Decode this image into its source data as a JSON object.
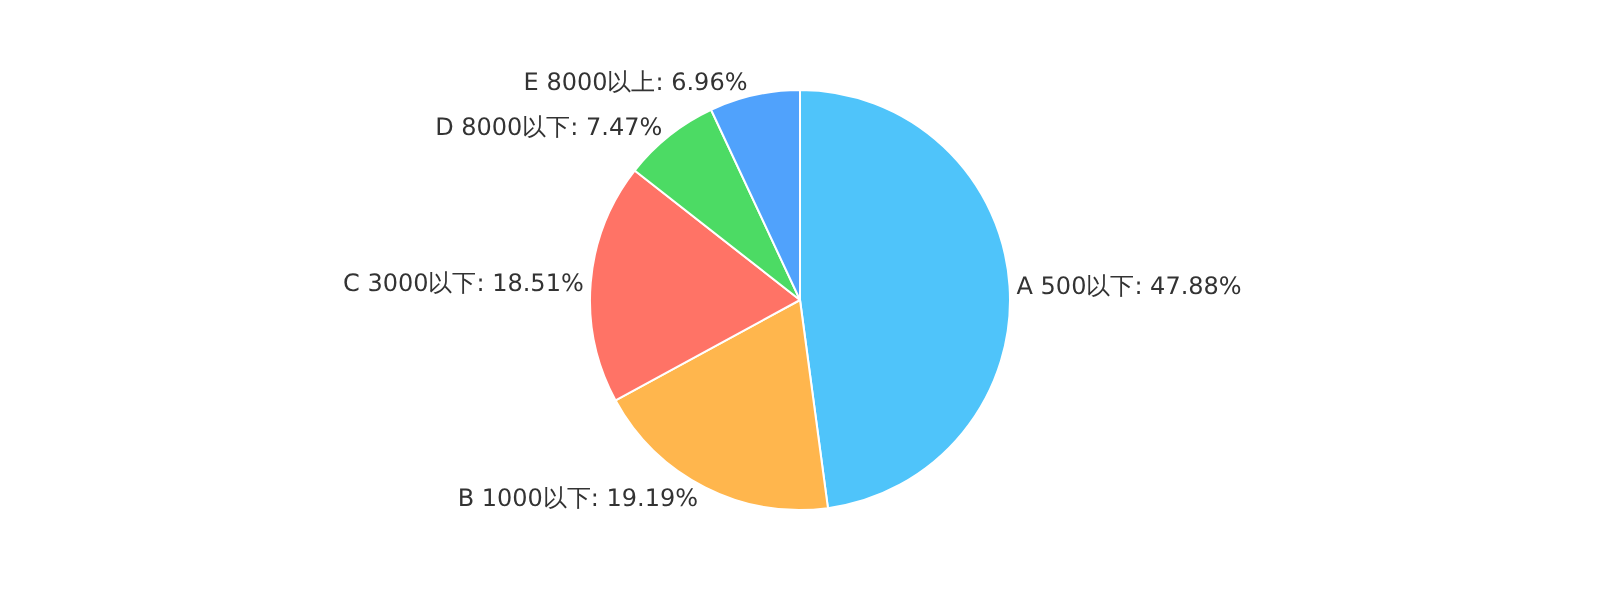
{
  "chart_data": {
    "type": "pie",
    "categories": [
      "A 500以下",
      "B 1000以下",
      "C 3000以下",
      "D 8000以下",
      "E 8000以上"
    ],
    "values": [
      47.88,
      19.19,
      18.51,
      7.47,
      6.96
    ],
    "value_labels": [
      "47.88%",
      "19.19%",
      "18.51%",
      "7.47%",
      "6.96%"
    ],
    "colors": [
      "#4fc4fa",
      "#ffb64d",
      "#ff7366",
      "#4cdb64",
      "#50a2fc"
    ],
    "legend": false
  }
}
